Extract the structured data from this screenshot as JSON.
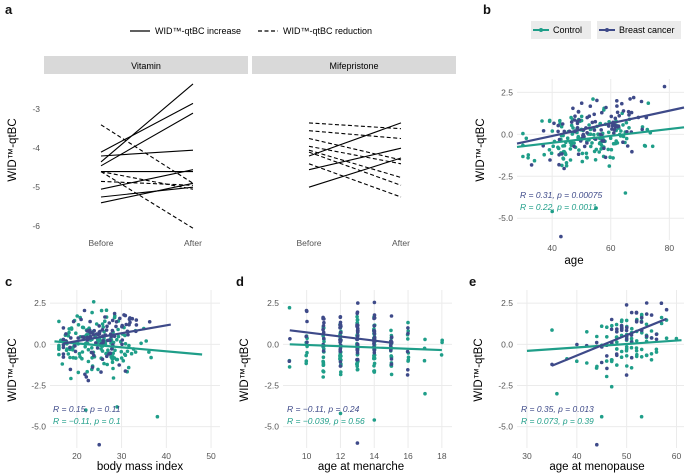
{
  "colors": {
    "control": "#1f9e89",
    "breast_cancer": "#3e4a89",
    "grid": "#ebebeb",
    "strip": "#d9d9d9",
    "line": "#000000"
  },
  "chart_data": [
    {
      "id": "a",
      "type": "line",
      "panel_label": "a",
      "ylabel": "WID™-qtBC",
      "ylim": [
        -6.25,
        -2.2
      ],
      "yticks": [
        "-3",
        "-4",
        "-5",
        "-6"
      ],
      "ytick_values": [
        -3,
        -4,
        -5,
        -6
      ],
      "categories": [
        "Before",
        "After"
      ],
      "legend": {
        "increase": "WID™-qtBC increase",
        "reduction": "WID™-qtBC reduction",
        "position": "top"
      },
      "facets": [
        {
          "name": "Vitamin",
          "series": [
            {
              "before": -5.4,
              "after": -4.9,
              "trend": "increase"
            },
            {
              "before": -5.25,
              "after": -5.0,
              "trend": "increase"
            },
            {
              "before": -5.05,
              "after": -4.55,
              "trend": "increase"
            },
            {
              "before": -4.6,
              "after": -4.6,
              "trend": "increase"
            },
            {
              "before": -4.45,
              "after": -3.1,
              "trend": "increase"
            },
            {
              "before": -4.35,
              "after": -2.35,
              "trend": "increase"
            },
            {
              "before": -4.2,
              "after": -4.05,
              "trend": "increase"
            },
            {
              "before": -4.1,
              "after": -2.85,
              "trend": "increase"
            },
            {
              "before": -3.4,
              "after": -4.9,
              "trend": "reduction"
            },
            {
              "before": -4.85,
              "after": -4.95,
              "trend": "reduction"
            },
            {
              "before": -4.6,
              "after": -5.05,
              "trend": "reduction"
            },
            {
              "before": -4.6,
              "after": -6.05,
              "trend": "reduction"
            }
          ]
        },
        {
          "name": "Mifepristone",
          "series": [
            {
              "before": -5.0,
              "after": -4.25,
              "trend": "increase"
            },
            {
              "before": -4.55,
              "after": -4.0,
              "trend": "increase"
            },
            {
              "before": -4.2,
              "after": -3.35,
              "trend": "increase"
            },
            {
              "before": -3.35,
              "after": -3.5,
              "trend": "reduction"
            },
            {
              "before": -3.55,
              "after": -3.75,
              "trend": "reduction"
            },
            {
              "before": -3.75,
              "after": -4.3,
              "trend": "reduction"
            },
            {
              "before": -3.95,
              "after": -4.4,
              "trend": "reduction"
            },
            {
              "before": -4.05,
              "after": -4.75,
              "trend": "reduction"
            },
            {
              "before": -4.1,
              "after": -4.95,
              "trend": "reduction"
            },
            {
              "before": -4.4,
              "after": -5.25,
              "trend": "reduction"
            }
          ]
        }
      ]
    },
    {
      "id": "b",
      "type": "scatter",
      "panel_label": "b",
      "xlabel": "age",
      "ylabel": "WID™-qtBC",
      "xlim": [
        28,
        85
      ],
      "ylim": [
        -6.3,
        3.3
      ],
      "xticks": [
        "40",
        "60",
        "80"
      ],
      "xtick_values": [
        40,
        60,
        80
      ],
      "yticks": [
        "2.5",
        "0.0",
        "-2.5",
        "-5.0"
      ],
      "ytick_values": [
        2.5,
        0.0,
        -2.5,
        -5.0
      ],
      "legend": {
        "control": "Control",
        "breast_cancer": "Breast cancer",
        "position": "top"
      },
      "fit": {
        "control": [
          [
            28,
            -0.75
          ],
          [
            85,
            0.42
          ]
        ],
        "breast_cancer": [
          [
            28,
            -0.55
          ],
          [
            85,
            1.6
          ]
        ]
      },
      "stats": {
        "breast_cancer": "R = 0.31, p = 0.00075",
        "control": "R = 0.22, p = 0.0011"
      },
      "points": {
        "control_n": 150,
        "control_center": 52,
        "control_spread": 9,
        "control_range": [
          30,
          82
        ],
        "bc_n": 95,
        "bc_center": 55,
        "bc_spread": 10,
        "bc_range": [
          33,
          84
        ],
        "noise_sd": 0.85,
        "outliers": [
          [
            43,
            -6.1,
            "breast_cancer"
          ],
          [
            40,
            -4.6,
            "control"
          ],
          [
            55,
            -4.4,
            "control"
          ],
          [
            65,
            -3.5,
            "control"
          ]
        ]
      }
    },
    {
      "id": "c",
      "type": "scatter",
      "panel_label": "c",
      "xlabel": "body mass index",
      "ylabel": "WID™-qtBC",
      "xlim": [
        14,
        52
      ],
      "ylim": [
        -6.3,
        3.3
      ],
      "xticks": [
        "20",
        "30",
        "40",
        "50"
      ],
      "xtick_values": [
        20,
        30,
        40,
        50
      ],
      "yticks": [
        "2.5",
        "0.0",
        "-2.5",
        "-5.0"
      ],
      "ytick_values": [
        2.5,
        0.0,
        -2.5,
        -5.0
      ],
      "fit": {
        "control": [
          [
            15,
            0.18
          ],
          [
            48,
            -0.62
          ]
        ],
        "breast_cancer": [
          [
            17,
            0.05
          ],
          [
            41,
            1.2
          ]
        ]
      },
      "stats": {
        "breast_cancer": "R = 0.15, p = 0.11",
        "control": "R = −0.11, p = 0.1"
      },
      "points": {
        "control_n": 150,
        "control_center": 24,
        "control_spread": 5,
        "control_range": [
          16,
          48
        ],
        "bc_n": 95,
        "bc_center": 25,
        "bc_spread": 5,
        "bc_range": [
          17,
          41
        ],
        "noise_sd": 0.85,
        "outliers": [
          [
            25,
            -6.1,
            "breast_cancer"
          ],
          [
            22,
            -4.0,
            "control"
          ],
          [
            38,
            -4.4,
            "control"
          ],
          [
            29,
            -3.8,
            "control"
          ]
        ]
      }
    },
    {
      "id": "d",
      "type": "scatter",
      "panel_label": "d",
      "xlabel": "age at menarche",
      "ylabel": "WID™-qtBC",
      "xlim": [
        8.6,
        18.6
      ],
      "ylim": [
        -6.3,
        3.3
      ],
      "xticks": [
        "10",
        "12",
        "14",
        "16",
        "18"
      ],
      "xtick_values": [
        10,
        12,
        14,
        16,
        18
      ],
      "yticks": [
        "2.5",
        "0.0",
        "-2.5",
        "-5.0"
      ],
      "ytick_values": [
        2.5,
        0.0,
        -2.5,
        -5.0
      ],
      "fit": {
        "control": [
          [
            9,
            0.0
          ],
          [
            18,
            -0.35
          ]
        ],
        "breast_cancer": [
          [
            9,
            0.85
          ],
          [
            15,
            0.1
          ]
        ]
      },
      "stats": {
        "breast_cancer": "R = −0.11, p = 0.24",
        "control": "R = −0.039, p = 0.56"
      },
      "points": {
        "discrete_x": [
          9,
          10,
          11,
          12,
          13,
          14,
          15,
          16,
          17,
          18
        ],
        "control_weights": [
          1,
          3,
          7,
          10,
          11,
          10,
          6,
          3,
          1,
          1
        ],
        "bc_weights": [
          1,
          2,
          5,
          8,
          10,
          9,
          5,
          2,
          0,
          0
        ],
        "control_n": 150,
        "bc_n": 95,
        "noise_sd": 0.9,
        "outliers": [
          [
            13,
            -6.0,
            "breast_cancer"
          ],
          [
            12,
            -4.2,
            "control"
          ],
          [
            14,
            -4.6,
            "control"
          ],
          [
            17,
            -3.0,
            "control"
          ]
        ]
      }
    },
    {
      "id": "e",
      "type": "scatter",
      "panel_label": "e",
      "xlabel": "age at menopause",
      "ylabel": "WID™-qtBC",
      "xlim": [
        28,
        61.5
      ],
      "ylim": [
        -6.3,
        3.3
      ],
      "xticks": [
        "30",
        "40",
        "50",
        "60"
      ],
      "xtick_values": [
        30,
        40,
        50,
        60
      ],
      "yticks": [
        "2.5",
        "0.0",
        "-2.5",
        "-5.0"
      ],
      "ytick_values": [
        2.5,
        0.0,
        -2.5,
        -5.0
      ],
      "fit": {
        "control": [
          [
            30,
            -0.4
          ],
          [
            61,
            0.25
          ]
        ],
        "breast_cancer": [
          [
            35,
            -1.3
          ],
          [
            58,
            1.55
          ]
        ]
      },
      "stats": {
        "breast_cancer": "R = 0.35, p = 0.013",
        "control": "R = 0.073, p = 0.39"
      },
      "points": {
        "discrete_x": [
          35,
          38,
          40,
          42,
          44,
          45,
          46,
          47,
          48,
          49,
          50,
          51,
          52,
          53,
          54,
          55,
          56,
          57,
          58,
          60
        ],
        "control_weights": [
          1,
          1,
          1,
          2,
          3,
          4,
          4,
          5,
          7,
          6,
          10,
          7,
          7,
          6,
          5,
          4,
          3,
          2,
          2,
          1
        ],
        "bc_weights": [
          1,
          0,
          1,
          1,
          2,
          2,
          3,
          3,
          4,
          4,
          6,
          4,
          4,
          3,
          3,
          2,
          2,
          1,
          1,
          0
        ],
        "control_n": 90,
        "bc_n": 45,
        "noise_sd": 0.85,
        "outliers": [
          [
            44,
            -6.1,
            "breast_cancer"
          ],
          [
            45,
            -4.4,
            "control"
          ],
          [
            53,
            -4.4,
            "control"
          ],
          [
            36,
            -3.0,
            "control"
          ]
        ]
      }
    }
  ]
}
